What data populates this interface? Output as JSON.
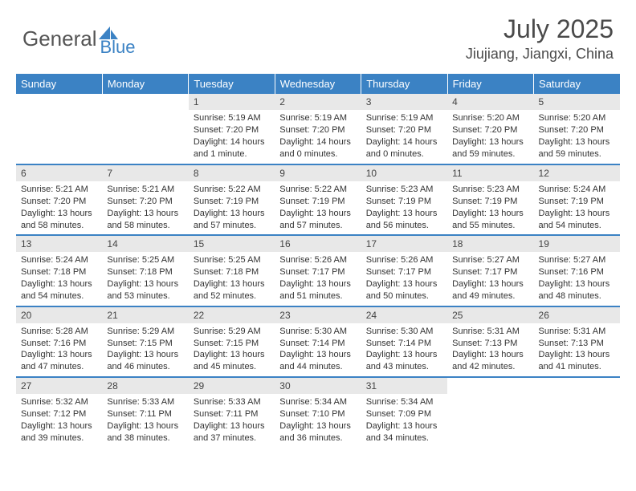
{
  "logo": {
    "text1": "General",
    "text2": "Blue",
    "text1_color": "#555555",
    "text2_color": "#3b82c4",
    "icon_color": "#3b82c4"
  },
  "title": "July 2025",
  "location": "Jiujiang, Jiangxi, China",
  "colors": {
    "header_bg": "#3b82c4",
    "header_text": "#ffffff",
    "daynum_bg": "#e8e8e8",
    "border": "#3b82c4",
    "body_text": "#333333"
  },
  "typography": {
    "title_fontsize": 32,
    "location_fontsize": 18,
    "header_fontsize": 13,
    "daynum_fontsize": 12,
    "content_fontsize": 11
  },
  "day_headers": [
    "Sunday",
    "Monday",
    "Tuesday",
    "Wednesday",
    "Thursday",
    "Friday",
    "Saturday"
  ],
  "weeks": [
    [
      null,
      null,
      {
        "n": "1",
        "sr": "5:19 AM",
        "ss": "7:20 PM",
        "dl": "14 hours and 1 minute."
      },
      {
        "n": "2",
        "sr": "5:19 AM",
        "ss": "7:20 PM",
        "dl": "14 hours and 0 minutes."
      },
      {
        "n": "3",
        "sr": "5:19 AM",
        "ss": "7:20 PM",
        "dl": "14 hours and 0 minutes."
      },
      {
        "n": "4",
        "sr": "5:20 AM",
        "ss": "7:20 PM",
        "dl": "13 hours and 59 minutes."
      },
      {
        "n": "5",
        "sr": "5:20 AM",
        "ss": "7:20 PM",
        "dl": "13 hours and 59 minutes."
      }
    ],
    [
      {
        "n": "6",
        "sr": "5:21 AM",
        "ss": "7:20 PM",
        "dl": "13 hours and 58 minutes."
      },
      {
        "n": "7",
        "sr": "5:21 AM",
        "ss": "7:20 PM",
        "dl": "13 hours and 58 minutes."
      },
      {
        "n": "8",
        "sr": "5:22 AM",
        "ss": "7:19 PM",
        "dl": "13 hours and 57 minutes."
      },
      {
        "n": "9",
        "sr": "5:22 AM",
        "ss": "7:19 PM",
        "dl": "13 hours and 57 minutes."
      },
      {
        "n": "10",
        "sr": "5:23 AM",
        "ss": "7:19 PM",
        "dl": "13 hours and 56 minutes."
      },
      {
        "n": "11",
        "sr": "5:23 AM",
        "ss": "7:19 PM",
        "dl": "13 hours and 55 minutes."
      },
      {
        "n": "12",
        "sr": "5:24 AM",
        "ss": "7:19 PM",
        "dl": "13 hours and 54 minutes."
      }
    ],
    [
      {
        "n": "13",
        "sr": "5:24 AM",
        "ss": "7:18 PM",
        "dl": "13 hours and 54 minutes."
      },
      {
        "n": "14",
        "sr": "5:25 AM",
        "ss": "7:18 PM",
        "dl": "13 hours and 53 minutes."
      },
      {
        "n": "15",
        "sr": "5:25 AM",
        "ss": "7:18 PM",
        "dl": "13 hours and 52 minutes."
      },
      {
        "n": "16",
        "sr": "5:26 AM",
        "ss": "7:17 PM",
        "dl": "13 hours and 51 minutes."
      },
      {
        "n": "17",
        "sr": "5:26 AM",
        "ss": "7:17 PM",
        "dl": "13 hours and 50 minutes."
      },
      {
        "n": "18",
        "sr": "5:27 AM",
        "ss": "7:17 PM",
        "dl": "13 hours and 49 minutes."
      },
      {
        "n": "19",
        "sr": "5:27 AM",
        "ss": "7:16 PM",
        "dl": "13 hours and 48 minutes."
      }
    ],
    [
      {
        "n": "20",
        "sr": "5:28 AM",
        "ss": "7:16 PM",
        "dl": "13 hours and 47 minutes."
      },
      {
        "n": "21",
        "sr": "5:29 AM",
        "ss": "7:15 PM",
        "dl": "13 hours and 46 minutes."
      },
      {
        "n": "22",
        "sr": "5:29 AM",
        "ss": "7:15 PM",
        "dl": "13 hours and 45 minutes."
      },
      {
        "n": "23",
        "sr": "5:30 AM",
        "ss": "7:14 PM",
        "dl": "13 hours and 44 minutes."
      },
      {
        "n": "24",
        "sr": "5:30 AM",
        "ss": "7:14 PM",
        "dl": "13 hours and 43 minutes."
      },
      {
        "n": "25",
        "sr": "5:31 AM",
        "ss": "7:13 PM",
        "dl": "13 hours and 42 minutes."
      },
      {
        "n": "26",
        "sr": "5:31 AM",
        "ss": "7:13 PM",
        "dl": "13 hours and 41 minutes."
      }
    ],
    [
      {
        "n": "27",
        "sr": "5:32 AM",
        "ss": "7:12 PM",
        "dl": "13 hours and 39 minutes."
      },
      {
        "n": "28",
        "sr": "5:33 AM",
        "ss": "7:11 PM",
        "dl": "13 hours and 38 minutes."
      },
      {
        "n": "29",
        "sr": "5:33 AM",
        "ss": "7:11 PM",
        "dl": "13 hours and 37 minutes."
      },
      {
        "n": "30",
        "sr": "5:34 AM",
        "ss": "7:10 PM",
        "dl": "13 hours and 36 minutes."
      },
      {
        "n": "31",
        "sr": "5:34 AM",
        "ss": "7:09 PM",
        "dl": "13 hours and 34 minutes."
      },
      null,
      null
    ]
  ],
  "labels": {
    "sunrise": "Sunrise:",
    "sunset": "Sunset:",
    "daylight": "Daylight:"
  }
}
